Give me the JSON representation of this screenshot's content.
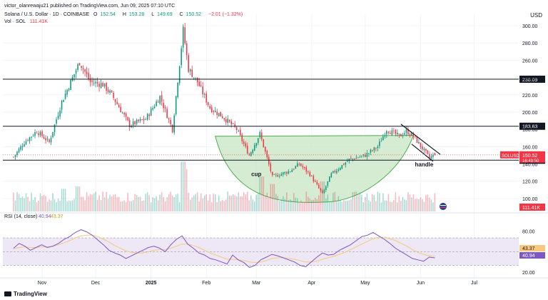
{
  "header": {
    "publisher": "victor_olanrewaju21 published on TradingView.com, Jun 09, 2025 07:10 UTC",
    "symbol": "Solana / U.S. Dollar · 1D · COINBASE",
    "o_label": "O",
    "o": "152.54",
    "h_label": "H",
    "h": "153.28",
    "l_label": "L",
    "l": "149.69",
    "c_label": "C",
    "c": "150.52",
    "change": "−2.01 (−1.32%)",
    "vol_label": "Vol · SOL",
    "vol": "111.41K",
    "currency": "USD"
  },
  "brand": {
    "name": "TradingView"
  },
  "colors": {
    "up": "#089981",
    "down": "#f23645",
    "cup_fill": "#c8e6c3",
    "cup_stroke": "#4caf50",
    "rsi": "#7e57c2",
    "rsi_ma": "#f7c97e",
    "rsi_band": "#ede7f6"
  },
  "chart_data": [
    {
      "type": "candlestick",
      "title": "Solana / U.S. Dollar · 1D · COINBASE",
      "ylim": [
        85,
        305
      ],
      "y_ticks": [
        "100.00",
        "120.00",
        "140.00",
        "160.00",
        "180.00",
        "200.00",
        "220.00",
        "240.00",
        "260.00",
        "280.00",
        "300.00"
      ],
      "x_ticks": [
        "Nov",
        "Dec",
        "2025",
        "Feb",
        "Mar",
        "Apr",
        "May",
        "Jun",
        "Jul"
      ],
      "anchors": [
        [
          "2024-10-16",
          148
        ],
        [
          "2024-10-22",
          165
        ],
        [
          "2024-10-29",
          178
        ],
        [
          "2024-11-05",
          165
        ],
        [
          "2024-11-12",
          212
        ],
        [
          "2024-11-22",
          258
        ],
        [
          "2024-11-28",
          235
        ],
        [
          "2024-12-05",
          232
        ],
        [
          "2024-12-10",
          220
        ],
        [
          "2024-12-20",
          185
        ],
        [
          "2024-12-29",
          192
        ],
        [
          "2025-01-06",
          218
        ],
        [
          "2025-01-13",
          180
        ],
        [
          "2025-01-19",
          295
        ],
        [
          "2025-01-22",
          250
        ],
        [
          "2025-01-27",
          235
        ],
        [
          "2025-02-03",
          205
        ],
        [
          "2025-02-10",
          195
        ],
        [
          "2025-02-18",
          180
        ],
        [
          "2025-02-25",
          150
        ],
        [
          "2025-03-03",
          175
        ],
        [
          "2025-03-10",
          125
        ],
        [
          "2025-03-20",
          132
        ],
        [
          "2025-03-25",
          140
        ],
        [
          "2025-03-31",
          128
        ],
        [
          "2025-04-07",
          105
        ],
        [
          "2025-04-12",
          128
        ],
        [
          "2025-04-22",
          145
        ],
        [
          "2025-05-01",
          150
        ],
        [
          "2025-05-08",
          160
        ],
        [
          "2025-05-13",
          180
        ],
        [
          "2025-05-20",
          172
        ],
        [
          "2025-05-24",
          178
        ],
        [
          "2025-05-28",
          172
        ],
        [
          "2025-06-02",
          158
        ],
        [
          "2025-06-06",
          147
        ],
        [
          "2025-06-09",
          150.5
        ]
      ],
      "volume": {
        "label": "Vol · SOL",
        "value_label": "111.41K",
        "spikes": [
          [
            "2025-01-19",
            1.0
          ],
          [
            "2025-01-20",
            0.85
          ],
          [
            "2025-03-04",
            0.7
          ],
          [
            "2025-03-10",
            0.55
          ],
          [
            "2025-04-07",
            0.6
          ],
          [
            "2024-11-13",
            0.45
          ],
          [
            "2024-11-21",
            0.5
          ]
        ]
      },
      "horizontal_lines": [
        {
          "value": 238.09,
          "label": "238.09",
          "color": "#131722"
        },
        {
          "value": 183.63,
          "label": "183.63",
          "color": "#131722"
        },
        {
          "value": 144.3,
          "label": "144.30",
          "color": "#131722"
        }
      ],
      "price_labels": [
        {
          "value": 150.52,
          "label": "150.52",
          "tag": "SOLUSD",
          "color": "#f23645"
        },
        {
          "value": 146.5,
          "label": "16:49:50",
          "color": "#f23645"
        }
      ],
      "annotations": [
        {
          "text": "cup",
          "x": "2025-03-01",
          "y": 126
        },
        {
          "text": "handle",
          "x": "2025-06-03",
          "y": 137
        }
      ],
      "cup": {
        "left": [
          "2025-02-06",
          172
        ],
        "bottom": [
          "2025-04-10",
          96
        ],
        "right": [
          "2025-05-28",
          173
        ]
      },
      "handle_channel": {
        "upper": [
          [
            "2025-05-21",
            186
          ],
          [
            "2025-06-12",
            151
          ]
        ],
        "lower": [
          [
            "2025-05-27",
            163
          ],
          [
            "2025-06-08",
            143
          ]
        ]
      }
    },
    {
      "type": "line",
      "title": "RSI (14, close)",
      "label": "RSI (14, close)",
      "rsi_value": "40.94",
      "ma_value": "43.37",
      "ylim": [
        18,
        92
      ],
      "y_ticks": [
        "20.00",
        "80.00"
      ],
      "levels": [
        30,
        50,
        70
      ],
      "series": [
        {
          "name": "RSI",
          "values": [
            55,
            62,
            58,
            52,
            56,
            60,
            56,
            58,
            62,
            68,
            72,
            78,
            82,
            79,
            74,
            67,
            60,
            52,
            48,
            45,
            40,
            44,
            48,
            52,
            56,
            58,
            55,
            50,
            60,
            68,
            73,
            61,
            55,
            48,
            45,
            40,
            38,
            35,
            32,
            45,
            38,
            34,
            27,
            30,
            38,
            42,
            46,
            44,
            41,
            38,
            35,
            30,
            28,
            35,
            42,
            48,
            45,
            46,
            52,
            56,
            60,
            66,
            72,
            74,
            78,
            73,
            68,
            62,
            55,
            50,
            45,
            40,
            38,
            36,
            42,
            40.94
          ]
        },
        {
          "name": "RSI-based MA",
          "values": [
            54,
            56,
            57,
            56,
            56,
            57,
            57,
            58,
            60,
            63,
            66,
            70,
            73,
            74,
            74,
            72,
            68,
            64,
            59,
            55,
            51,
            49,
            48,
            48,
            50,
            52,
            53,
            53,
            55,
            58,
            61,
            61,
            59,
            56,
            52,
            48,
            45,
            42,
            39,
            39,
            38,
            37,
            35,
            34,
            35,
            37,
            40,
            41,
            41,
            40,
            39,
            37,
            35,
            35,
            36,
            39,
            41,
            43,
            46,
            49,
            53,
            57,
            61,
            65,
            69,
            71,
            71,
            69,
            66,
            62,
            58,
            53,
            49,
            46,
            44,
            43.37
          ]
        }
      ]
    }
  ]
}
